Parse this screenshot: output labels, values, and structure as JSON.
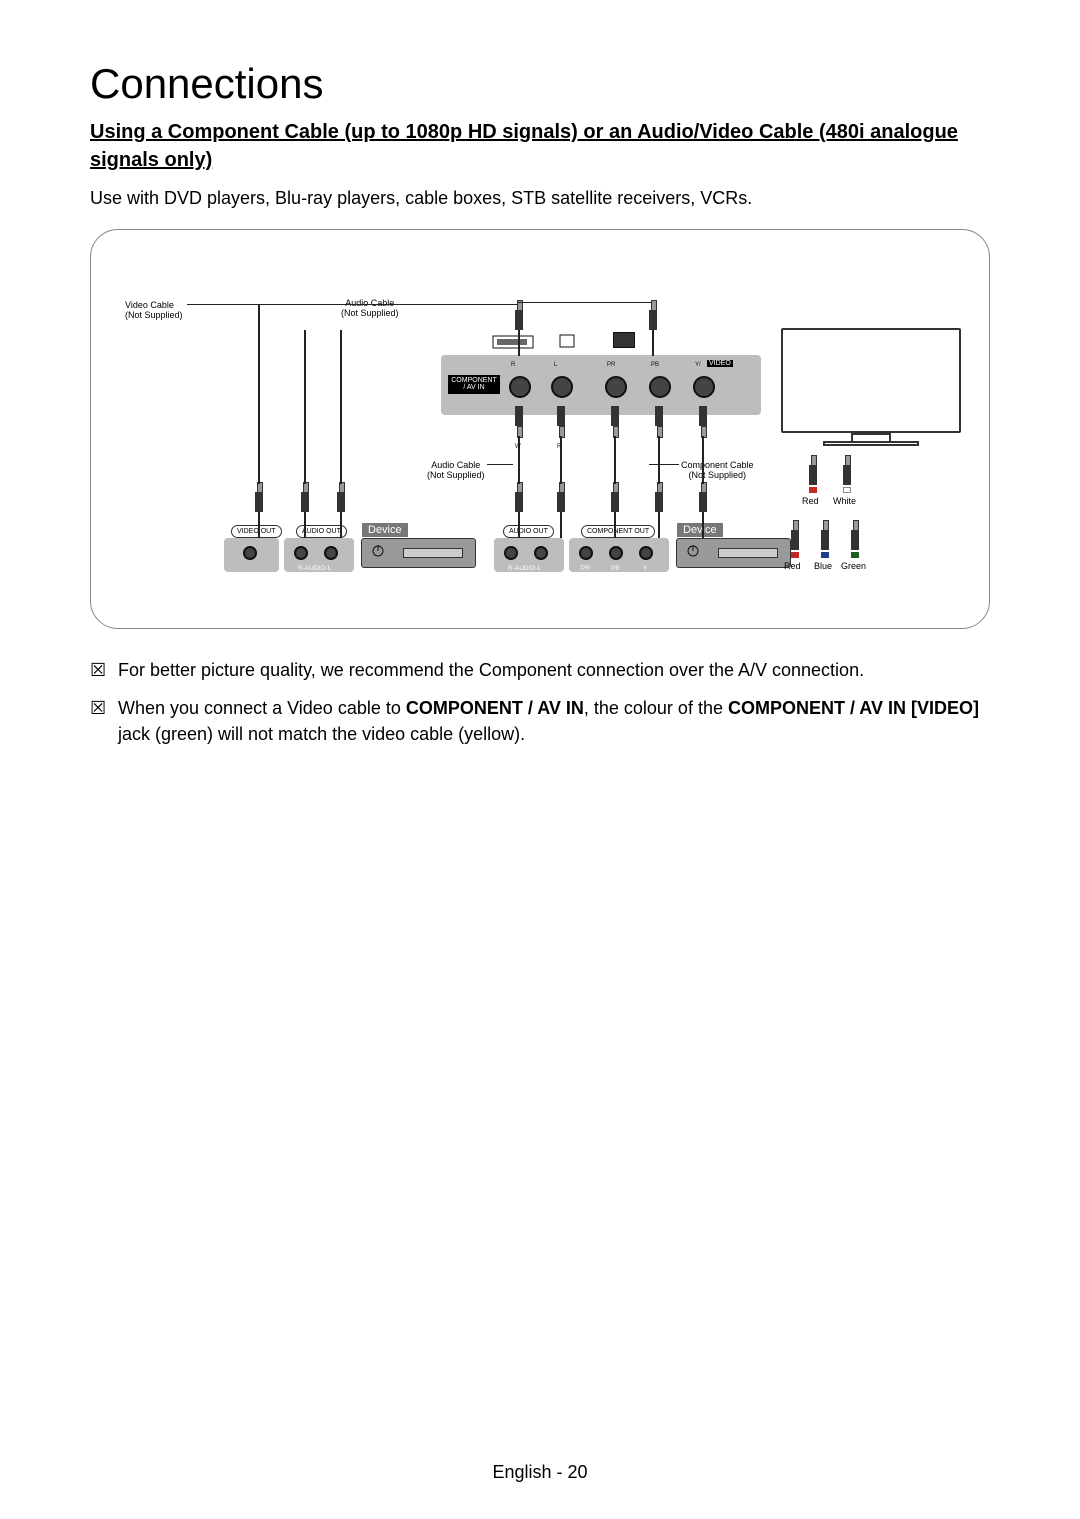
{
  "title": "Connections",
  "subtitle": "Using a Component Cable (up to 1080p HD signals) or an Audio/Video Cable (480i analogue signals only)",
  "lead": "Use with DVD players, Blu-ray players, cable boxes, STB satellite receivers, VCRs.",
  "notes": [
    {
      "glyph": "☒",
      "segments": [
        {
          "text": "For better picture quality, we recommend the Component connection over the A/V connection.",
          "bold": false
        }
      ]
    },
    {
      "glyph": "☒",
      "segments": [
        {
          "text": "When you connect a Video cable to ",
          "bold": false
        },
        {
          "text": "COMPONENT / AV IN",
          "bold": true
        },
        {
          "text": ", the colour of the ",
          "bold": false
        },
        {
          "text": "COMPONENT / AV IN [VIDEO]",
          "bold": true
        },
        {
          "text": " jack (green) will not match the video cable (yellow).",
          "bold": false
        }
      ]
    }
  ],
  "footer": "English - 20",
  "diagram": {
    "type": "diagram",
    "background_color": "#ffffff",
    "labels": {
      "video_cable": "Video Cable\n(Not Supplied)",
      "audio_cable_top": "Audio Cable\n(Not Supplied)",
      "audio_cable_mid": "Audio Cable\n(Not Supplied)",
      "component_cable": "Component Cable\n(Not Supplied)",
      "component_av_in": "COMPONENT\n/ AV IN",
      "device": "Device",
      "video_out": "VIDEO OUT",
      "audio_out": "AUDIO OUT",
      "component_out": "COMPONENT OUT",
      "raudio": "R-AUDIO-L",
      "video_badge": "VIDEO"
    },
    "panel_tiny": [
      "R",
      "L",
      "PR",
      "PB",
      "Y/"
    ],
    "cable_tiny": [
      "R",
      "W",
      "Y",
      "R",
      "W",
      "G",
      "B",
      "R"
    ],
    "component_out_tiny": [
      "PR",
      "PB",
      "Y"
    ],
    "side_colors": {
      "top": [
        "Red",
        "White"
      ],
      "bottom": [
        "Red",
        "Blue",
        "Green"
      ],
      "top_hex": [
        "#c62828",
        "#ffffff"
      ],
      "bottom_hex": [
        "#c62828",
        "#1e3a8a",
        "#1b5e20"
      ]
    },
    "colors": {
      "panel_bg": "#bdbdbd",
      "device_bg": "#999999",
      "jack_dark": "#444444",
      "border": "#333333"
    }
  }
}
